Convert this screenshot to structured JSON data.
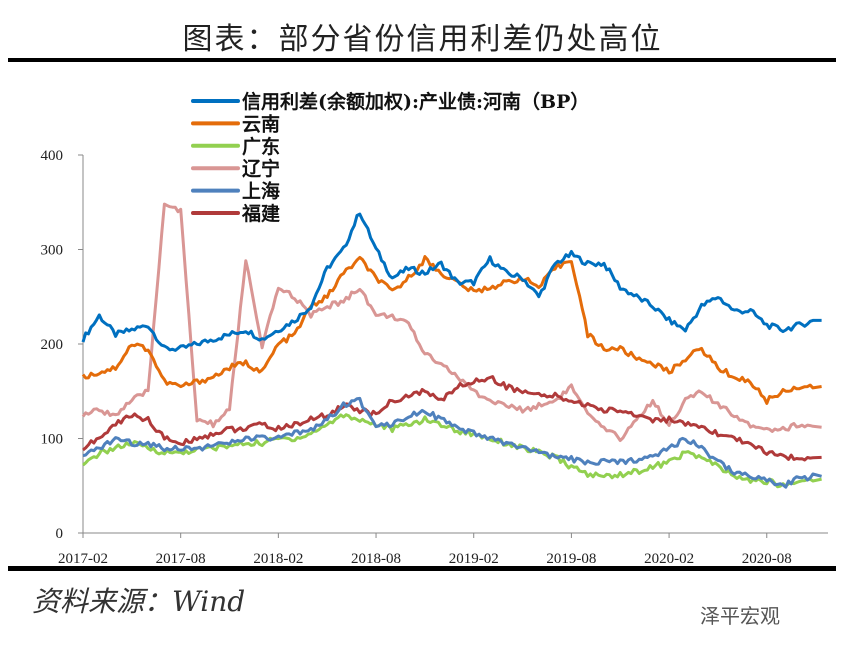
{
  "title": "图表：部分省份信用利差仍处高位",
  "source": "资料来源：Wind",
  "watermark": "泽平宏观",
  "chart_data": {
    "type": "line",
    "xlabel": "",
    "ylabel": "",
    "ylim": [
      0,
      400
    ],
    "yticks": [
      "0",
      "100",
      "200",
      "300",
      "400"
    ],
    "xticks": [
      "2017-02",
      "2017-08",
      "2018-02",
      "2018-08",
      "2019-02",
      "2019-08",
      "2020-02",
      "2020-08"
    ],
    "x_start": "2017-02",
    "x_end": "2020-11",
    "grid": false,
    "legend_position": "top-left",
    "series": [
      {
        "name": "信用利差(余额加权):产业债:河南（BP）",
        "color": "#0070C0",
        "values": [
          205,
          230,
          210,
          215,
          220,
          195,
          195,
          200,
          205,
          210,
          215,
          205,
          215,
          225,
          240,
          280,
          300,
          340,
          300,
          270,
          280,
          275,
          285,
          265,
          265,
          290,
          275,
          270,
          250,
          285,
          295,
          285,
          285,
          260,
          250,
          240,
          225,
          215,
          240,
          250,
          235,
          235,
          220,
          215,
          220,
          225
        ]
      },
      {
        "name": "云南",
        "color": "#E46C0A",
        "values": [
          165,
          170,
          175,
          200,
          195,
          160,
          155,
          160,
          165,
          175,
          180,
          170,
          200,
          210,
          240,
          250,
          275,
          290,
          270,
          255,
          270,
          290,
          275,
          265,
          255,
          260,
          265,
          270,
          260,
          280,
          290,
          210,
          195,
          195,
          185,
          180,
          170,
          185,
          195,
          175,
          165,
          160,
          140,
          150,
          155,
          155
        ]
      },
      {
        "name": "广东",
        "color": "#92D050",
        "values": [
          70,
          85,
          90,
          95,
          90,
          85,
          85,
          88,
          90,
          92,
          95,
          95,
          100,
          100,
          105,
          115,
          125,
          120,
          115,
          110,
          115,
          120,
          115,
          108,
          105,
          100,
          95,
          90,
          85,
          80,
          70,
          62,
          60,
          62,
          65,
          70,
          75,
          85,
          80,
          70,
          60,
          55,
          55,
          50,
          55,
          57
        ]
      },
      {
        "name": "辽宁",
        "color": "#D99694",
        "values": [
          125,
          130,
          125,
          140,
          150,
          350,
          340,
          120,
          115,
          130,
          290,
          195,
          260,
          250,
          230,
          240,
          245,
          260,
          230,
          230,
          220,
          190,
          180,
          165,
          150,
          140,
          135,
          130,
          135,
          140,
          155,
          125,
          110,
          100,
          120,
          140,
          115,
          140,
          150,
          135,
          125,
          115,
          110,
          110,
          115,
          112
        ]
      },
      {
        "name": "上海",
        "color": "#4F81BD",
        "values": [
          80,
          90,
          100,
          95,
          95,
          90,
          90,
          90,
          92,
          95,
          100,
          100,
          100,
          105,
          110,
          120,
          135,
          140,
          115,
          115,
          125,
          130,
          120,
          110,
          105,
          100,
          95,
          90,
          85,
          80,
          78,
          75,
          75,
          75,
          78,
          82,
          90,
          100,
          90,
          75,
          65,
          60,
          55,
          50,
          58,
          60
        ]
      },
      {
        "name": "福建",
        "color": "#B03A3A",
        "values": [
          90,
          100,
          115,
          125,
          120,
          100,
          95,
          100,
          105,
          110,
          110,
          115,
          110,
          115,
          120,
          125,
          135,
          130,
          125,
          140,
          145,
          150,
          140,
          155,
          160,
          165,
          155,
          150,
          145,
          145,
          140,
          135,
          130,
          130,
          125,
          120,
          120,
          115,
          110,
          105,
          100,
          95,
          85,
          80,
          80,
          80
        ]
      }
    ]
  }
}
